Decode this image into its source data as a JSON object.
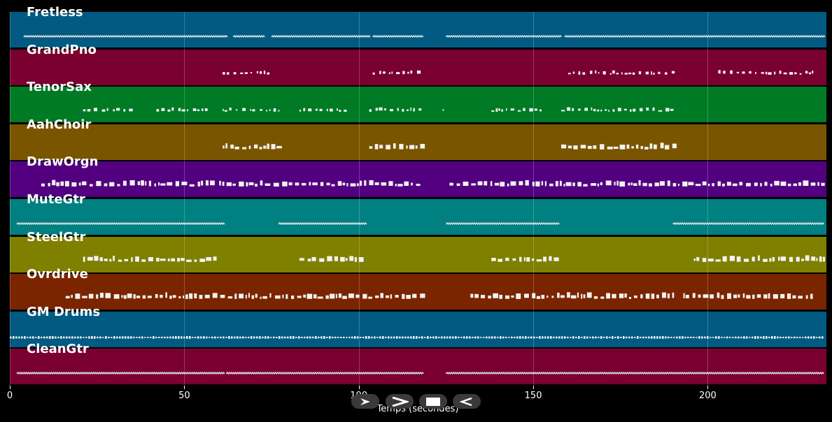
{
  "tracks": [
    {
      "label": "Fretless",
      "color": "#005a82",
      "pattern": "wave",
      "segments": [
        [
          4,
          62
        ],
        [
          64,
          73
        ],
        [
          75,
          103
        ],
        [
          104,
          118
        ],
        [
          125,
          158
        ],
        [
          159,
          233
        ]
      ]
    },
    {
      "label": "GrandPno",
      "color": "#7a0030",
      "pattern": "dashes",
      "segments": [
        [
          61,
          74
        ],
        [
          104,
          118
        ],
        [
          160,
          190
        ],
        [
          203,
          230
        ]
      ]
    },
    {
      "label": "TenorSax",
      "color": "#007a25",
      "pattern": "dashes",
      "segments": [
        [
          21,
          35
        ],
        [
          42,
          56
        ],
        [
          61,
          77
        ],
        [
          83,
          97
        ],
        [
          103,
          118
        ],
        [
          124,
          125
        ],
        [
          138,
          152
        ],
        [
          158,
          190
        ]
      ]
    },
    {
      "label": "AahChoir",
      "color": "#7a5500",
      "pattern": "blocks",
      "segments": [
        [
          61,
          77
        ],
        [
          103,
          118
        ],
        [
          158,
          190
        ]
      ]
    },
    {
      "label": "DrawOrgn",
      "color": "#520080",
      "pattern": "blocks",
      "segments": [
        [
          9,
          59
        ],
        [
          60,
          118
        ],
        [
          126,
          233
        ]
      ]
    },
    {
      "label": "MuteGtr",
      "color": "#008080",
      "pattern": "wave",
      "segments": [
        [
          2,
          61
        ],
        [
          77,
          102
        ],
        [
          125,
          157
        ],
        [
          190,
          233
        ]
      ]
    },
    {
      "label": "SteelGtr",
      "color": "#7f7f00",
      "pattern": "blocks",
      "segments": [
        [
          21,
          59
        ],
        [
          83,
          101
        ],
        [
          138,
          157
        ],
        [
          196,
          233
        ]
      ]
    },
    {
      "label": "Ovrdrive",
      "color": "#7a2500",
      "pattern": "blocks",
      "segments": [
        [
          16,
          75
        ],
        [
          76,
          118
        ],
        [
          132,
          190
        ],
        [
          193,
          230
        ]
      ]
    },
    {
      "label": "GM Drums",
      "color": "#005a82",
      "pattern": "drums",
      "segments": [
        [
          0,
          233
        ]
      ]
    },
    {
      "label": "CleanGtr",
      "color": "#7a0030",
      "pattern": "wave",
      "segments": [
        [
          2,
          61
        ],
        [
          62,
          118
        ],
        [
          125,
          233
        ]
      ]
    }
  ],
  "x_axis": {
    "label": "Temps (secondes)",
    "min": 0,
    "max": 234,
    "ticks": [
      0,
      50,
      100,
      150,
      200
    ],
    "tick_labels": [
      "0",
      "50",
      "100",
      "150",
      "200"
    ]
  },
  "controls": [
    {
      "name": "play-button",
      "icon": "play-icon"
    },
    {
      "name": "forward-button",
      "icon": "chevron-right-icon"
    },
    {
      "name": "stop-button",
      "icon": "stop-icon"
    },
    {
      "name": "rewind-button",
      "icon": "rewind-icon"
    }
  ]
}
